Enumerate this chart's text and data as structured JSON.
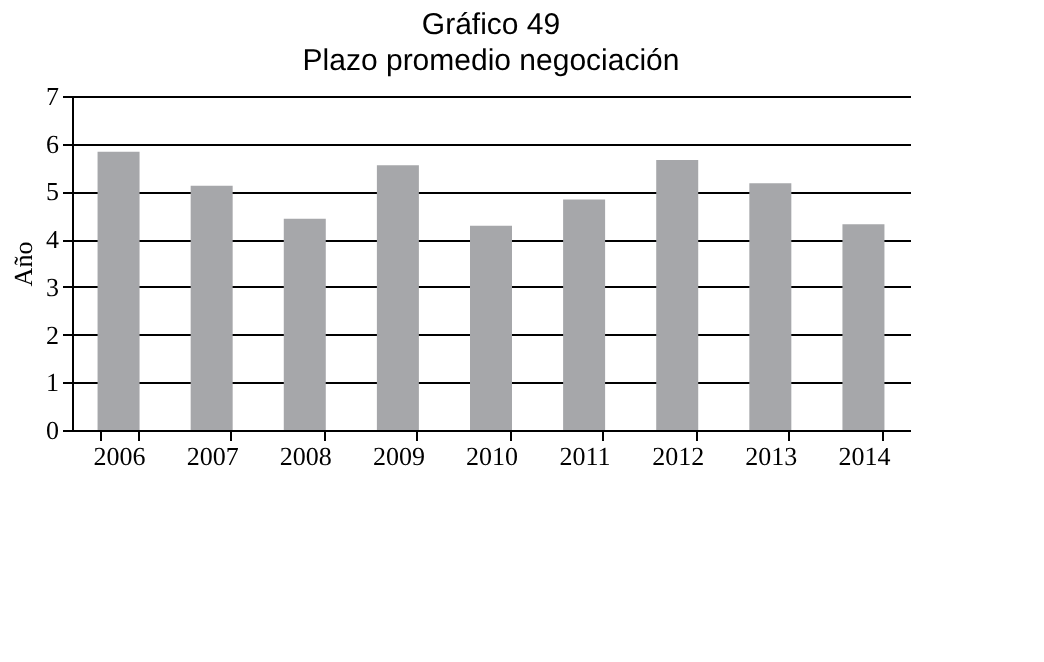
{
  "chart_data": {
    "type": "bar",
    "title": "Gráfico 49",
    "subtitle": "Plazo promedio negociación",
    "ylabel": "Año",
    "categories": [
      "2006",
      "2007",
      "2008",
      "2009",
      "2010",
      "2011",
      "2012",
      "2013",
      "2014"
    ],
    "values": [
      5.83,
      5.12,
      4.43,
      5.55,
      4.28,
      4.83,
      5.66,
      5.17,
      4.31
    ],
    "color": "#a6a7aa",
    "ylim": [
      0,
      7
    ],
    "yticks": [
      0,
      1,
      2,
      3,
      4,
      5,
      6,
      7
    ],
    "grid": "y"
  }
}
